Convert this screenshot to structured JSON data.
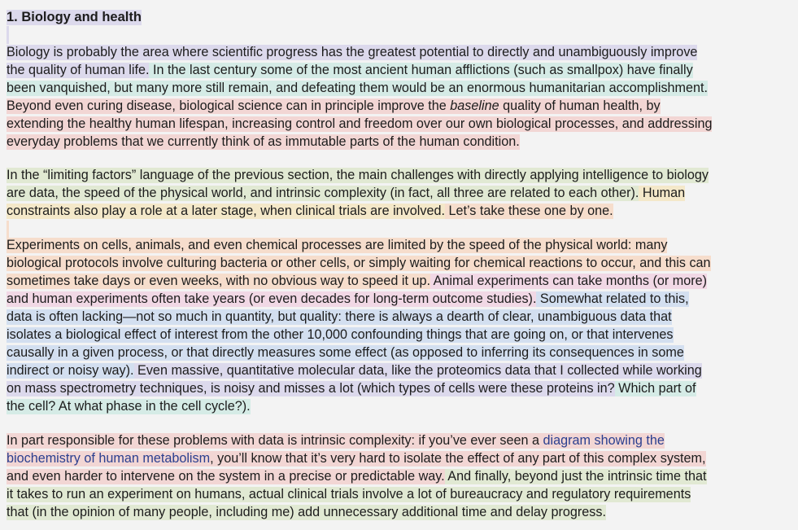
{
  "section": {
    "heading": "1. Biology and health"
  },
  "paragraphs": [
    {
      "lines": [
        [
          {
            "t": "Biology is probably the area where scientific progress has the greatest potential to directly and unambiguously improve",
            "c": "purple"
          }
        ],
        [
          {
            "t": "the quality of human life.",
            "c": "purple"
          },
          {
            "t": " In the last century some of the most ancient human afflictions (such as smallpox) have finally",
            "c": "teal"
          }
        ],
        [
          {
            "t": "been vanquished, but many more still remain, and defeating them would be an enormous humanitarian accomplishment.",
            "c": "teal"
          }
        ],
        [
          {
            "t": "Beyond even curing disease, biological science can in principle improve the ",
            "c": "red"
          },
          {
            "t": "baseline",
            "c": "red",
            "s": "ital"
          },
          {
            "t": " quality of human health, by",
            "c": "red"
          }
        ],
        [
          {
            "t": "extending the healthy human lifespan, increasing control and freedom over our own biological processes, and addressing",
            "c": "red"
          }
        ],
        [
          {
            "t": "everyday problems that we currently think of as immutable parts of the human condition.",
            "c": "red"
          }
        ]
      ]
    },
    {
      "lines": [
        [
          {
            "t": "In the “limiting factors” language of the previous section, the main challenges with directly applying intelligence to biology",
            "c": "green"
          }
        ],
        [
          {
            "t": "are data, the speed of the physical world, and intrinsic complexity (in fact, all three are related to each other).",
            "c": "green"
          },
          {
            "t": " Human",
            "c": "yellow"
          }
        ],
        [
          {
            "t": "constraints also play a role at a later stage, when clinical trials are involved.",
            "c": "yellow"
          },
          {
            "t": " Let’s take these one by one.",
            "c": "peach"
          }
        ]
      ]
    },
    {
      "lines": [
        [
          {
            "t": "Experiments on cells, animals, and even chemical processes are limited by the speed of the physical world: many",
            "c": "peach"
          }
        ],
        [
          {
            "t": "biological protocols involve culturing bacteria or other cells, or simply waiting for chemical reactions to occur, and this can",
            "c": "peach"
          }
        ],
        [
          {
            "t": "sometimes take days or even weeks, with no obvious way to speed it up.",
            "c": "peach"
          },
          {
            "t": " Animal experiments can take months (or more)",
            "c": "pink"
          }
        ],
        [
          {
            "t": "and human experiments often take years (or even decades for long-term outcome studies).",
            "c": "pink"
          },
          {
            "t": " Somewhat related to this,",
            "c": "blue"
          }
        ],
        [
          {
            "t": "data is often lacking—not so much in quantity, but quality: there is always a dearth of clear, unambiguous data that",
            "c": "blue"
          }
        ],
        [
          {
            "t": "isolates a biological effect of interest from the other 10,000 confounding things that are going on, or that intervenes",
            "c": "blue"
          }
        ],
        [
          {
            "t": "causally in a given process, or that directly measures some effect (as opposed to inferring its consequences in some",
            "c": "blue"
          }
        ],
        [
          {
            "t": "indirect or noisy way).",
            "c": "blue"
          },
          {
            "t": " Even massive, quantitative molecular data, like the proteomics data that I collected while working",
            "c": "purple"
          }
        ],
        [
          {
            "t": "on mass spectrometry techniques, is noisy and misses a lot (which types of cells were these proteins in?",
            "c": "purple"
          },
          {
            "t": " Which part of",
            "c": "teal"
          }
        ],
        [
          {
            "t": "the cell? At what phase in the cell cycle?).",
            "c": "teal"
          }
        ]
      ]
    },
    {
      "lines": [
        [
          {
            "t": "In part responsible for these problems with data is intrinsic complexity: if you’ve ever seen a ",
            "c": "red"
          },
          {
            "t": "diagram showing the",
            "c": "red",
            "s": "link"
          }
        ],
        [
          {
            "t": "biochemistry of human metabolism",
            "c": "red",
            "s": "link"
          },
          {
            "t": ", you’ll know that it’s very hard to isolate the effect of any part of this complex system,",
            "c": "red"
          }
        ],
        [
          {
            "t": "and even harder to intervene on the system in a precise or predictable way.",
            "c": "red"
          },
          {
            "t": " And finally, beyond just the intrinsic time that",
            "c": "green"
          }
        ],
        [
          {
            "t": "it takes to run an experiment on humans, actual clinical trials involve a lot of bureaucracy and regulatory requirements",
            "c": "green"
          }
        ],
        [
          {
            "t": "that (in the opinion of many people, including me) add unnecessary additional time and delay progress.",
            "c": "green"
          }
        ]
      ]
    }
  ]
}
